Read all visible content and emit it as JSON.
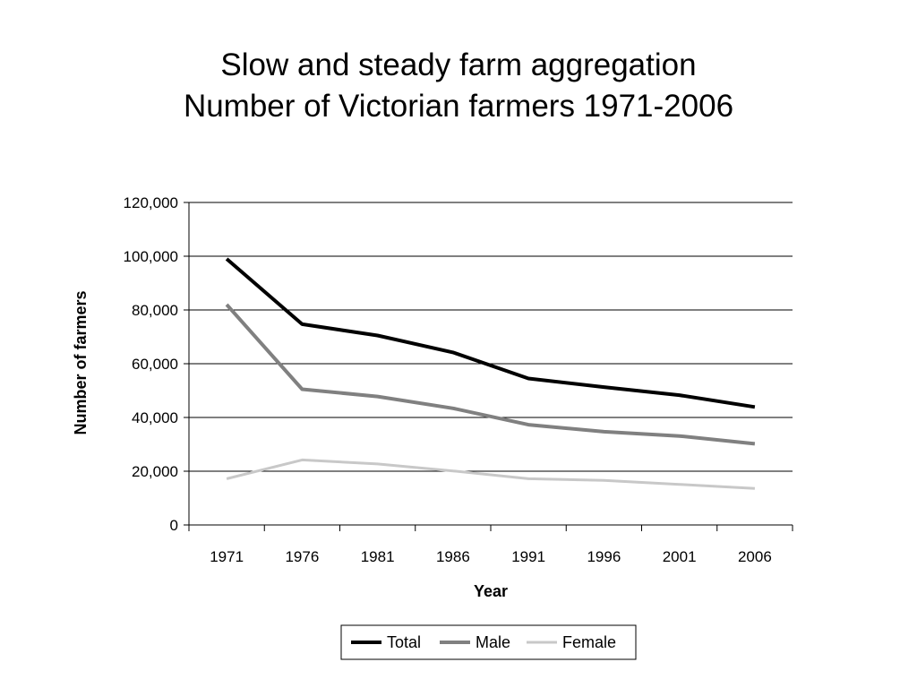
{
  "chart_data": {
    "type": "line",
    "title": "Slow and steady farm aggregation",
    "subtitle": "Number of Victorian farmers 1971-2006",
    "xlabel": "Year",
    "ylabel": "Number of farmers",
    "categories": [
      "1971",
      "1976",
      "1981",
      "1986",
      "1991",
      "1996",
      "2001",
      "2006"
    ],
    "ylim": [
      0,
      120000
    ],
    "yticks": [
      0,
      20000,
      40000,
      60000,
      80000,
      100000,
      120000
    ],
    "ytick_labels": [
      "0",
      "20,000",
      "40,000",
      "60,000",
      "80,000",
      "100,000",
      "120,000"
    ],
    "grid": true,
    "legend": "bottom",
    "series": [
      {
        "name": "Total",
        "color": "#000000",
        "values": [
          99000,
          74700,
          70500,
          64200,
          54500,
          51300,
          48300,
          43900
        ]
      },
      {
        "name": "Male",
        "color": "#808080",
        "values": [
          82000,
          50500,
          47800,
          43400,
          37300,
          34700,
          33100,
          30200
        ]
      },
      {
        "name": "Female",
        "color": "#c8c8c8",
        "values": [
          17200,
          24200,
          22700,
          20100,
          17200,
          16600,
          15100,
          13600
        ]
      }
    ]
  }
}
